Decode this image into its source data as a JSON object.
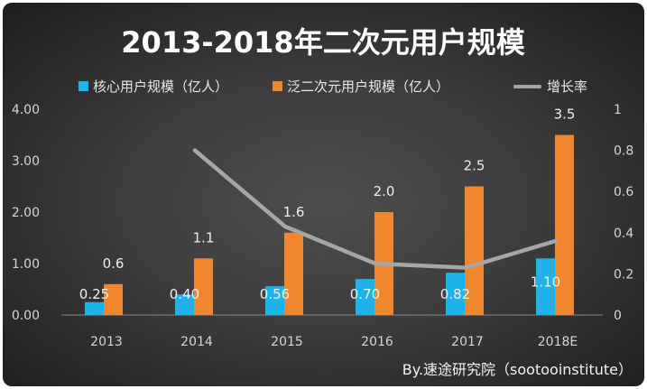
{
  "chart_data": {
    "type": "bar",
    "title": "2013-2018年二次元用户规模",
    "categories": [
      "2013",
      "2014",
      "2015",
      "2016",
      "2017",
      "2018E"
    ],
    "series": [
      {
        "name": "核心用户规模（亿人）",
        "color": "#1eb3ea",
        "values": [
          0.25,
          0.4,
          0.56,
          0.7,
          0.82,
          1.1
        ],
        "labels": [
          "0.25",
          "0.40",
          "0.56",
          "0.70",
          "0.82",
          "1.10"
        ]
      },
      {
        "name": "泛二次元用户规模（亿人）",
        "color": "#f0862e",
        "values": [
          0.6,
          1.1,
          1.6,
          2.0,
          2.5,
          3.5
        ],
        "labels": [
          "0.6",
          "1.1",
          "1.6",
          "2.0",
          "2.5",
          "3.5"
        ]
      }
    ],
    "line_series": [
      {
        "name": "增长率",
        "color": "#a6a6a6",
        "values": [
          null,
          0.8,
          0.43,
          0.25,
          0.23,
          0.36
        ]
      }
    ],
    "y_left": {
      "range": [
        0,
        4
      ],
      "ticks": [
        "0.00",
        "1.00",
        "2.00",
        "3.00",
        "4.00"
      ]
    },
    "y_right": {
      "range": [
        0,
        1
      ],
      "ticks": [
        "0",
        "0.2",
        "0.4",
        "0.6",
        "0.8",
        "1"
      ]
    },
    "legend_position": "top",
    "grid": false,
    "source": "By.速途研究院（sootooinstitute）"
  }
}
